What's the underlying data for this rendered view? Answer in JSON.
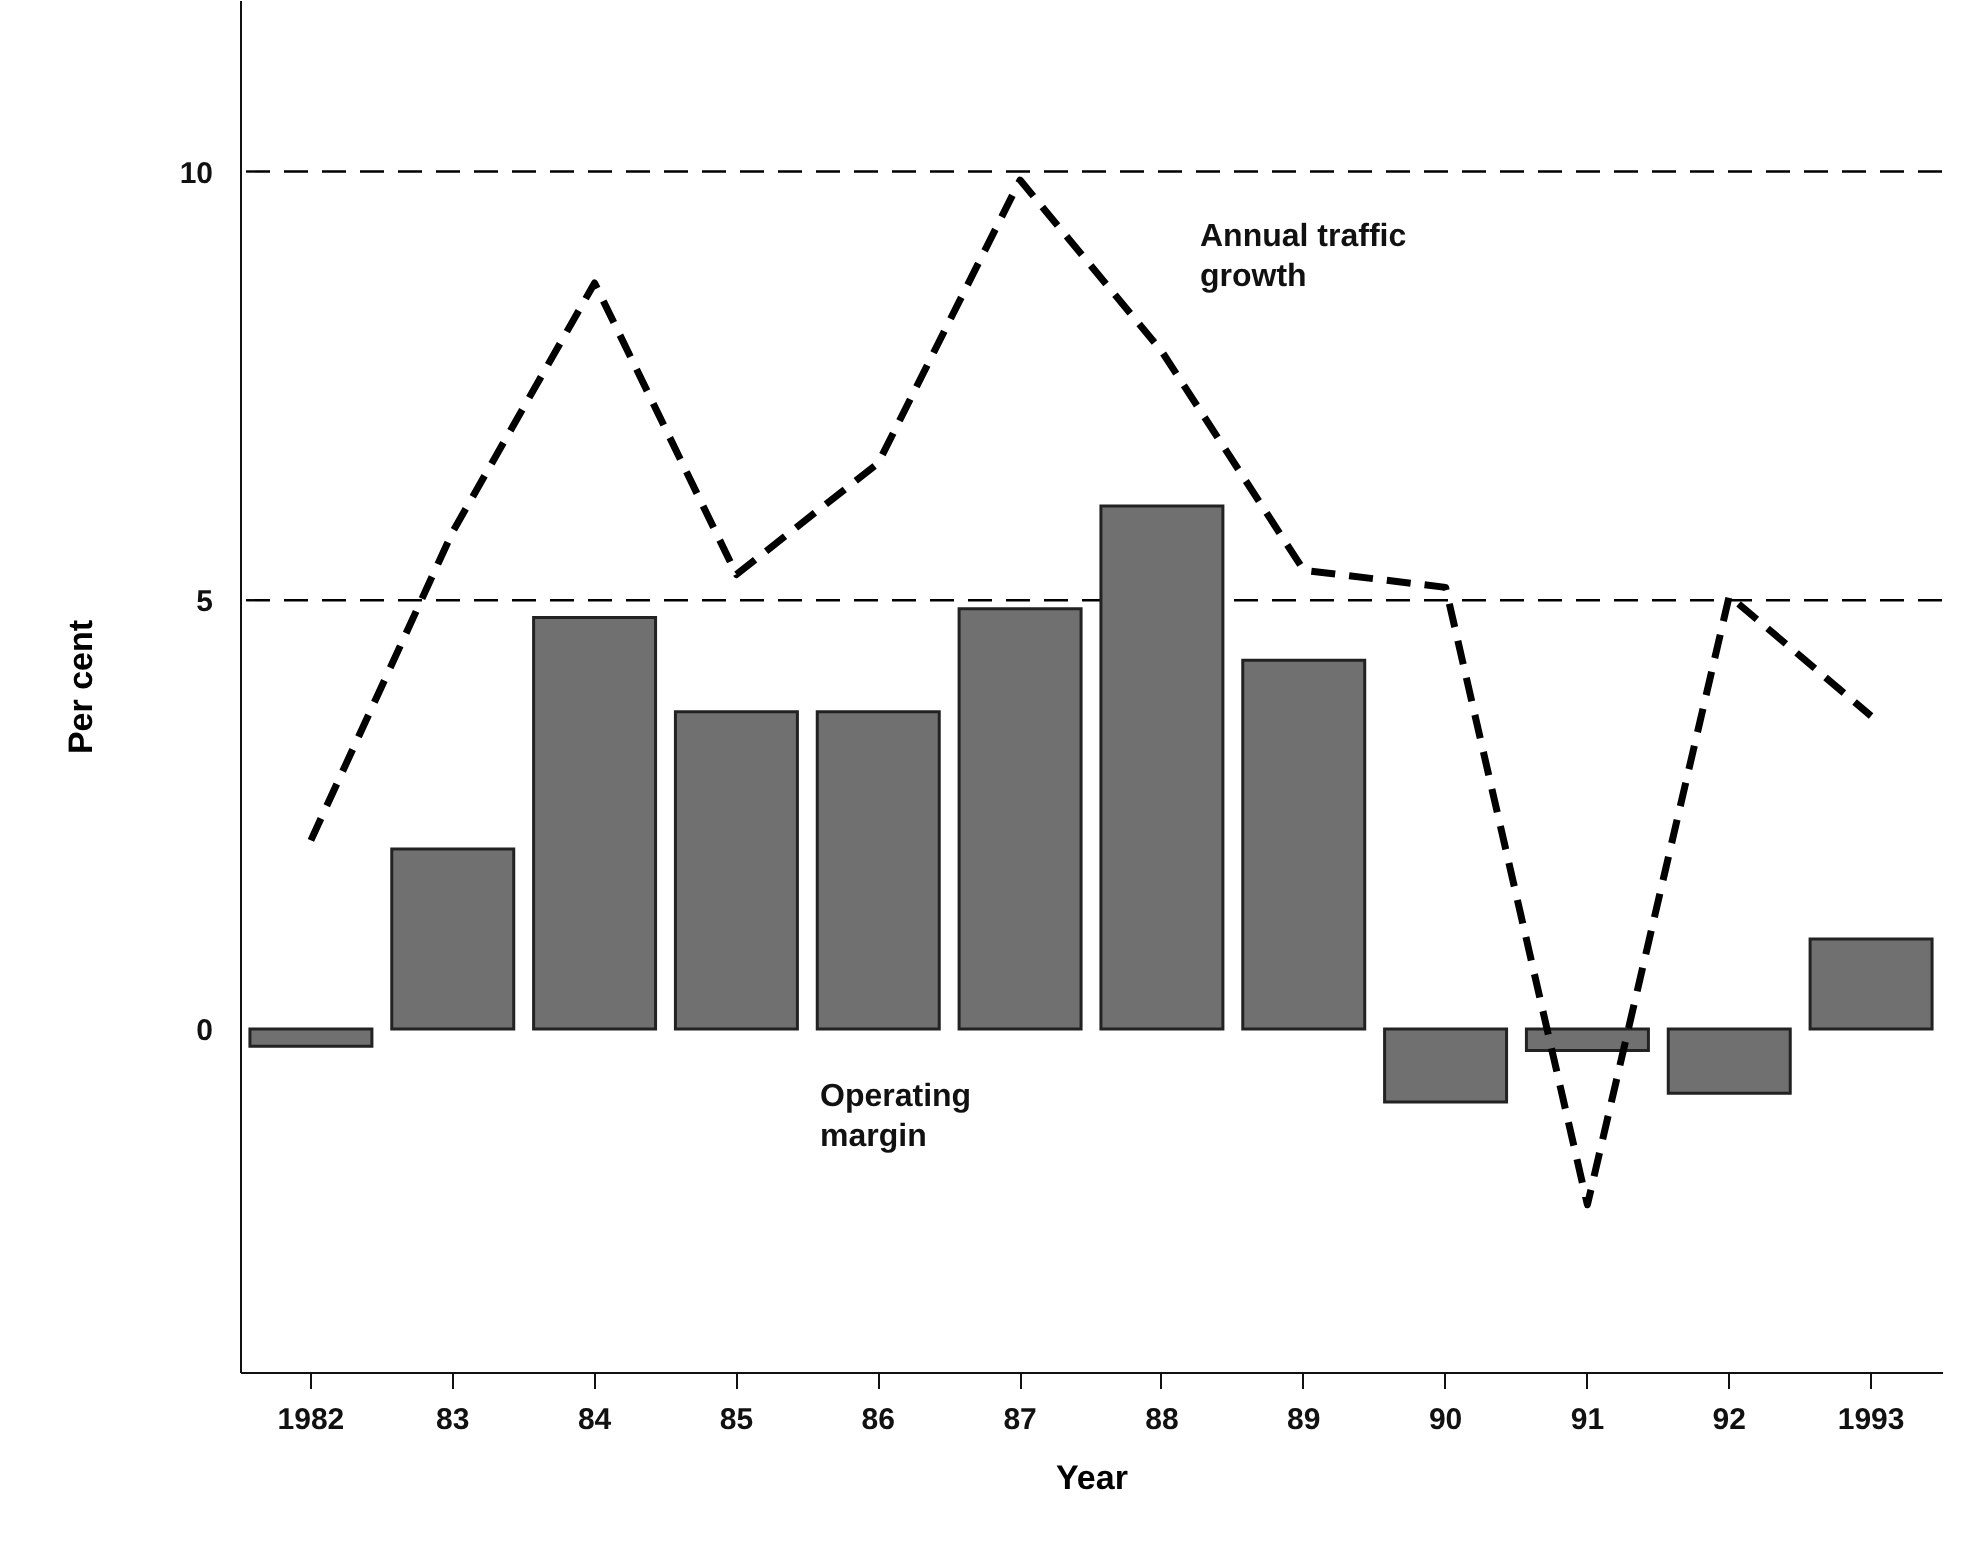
{
  "chart_data": {
    "type": "bar",
    "xlabel": "Year",
    "ylabel": "Per cent",
    "categories": [
      "1982",
      "83",
      "84",
      "85",
      "86",
      "87",
      "88",
      "89",
      "90",
      "91",
      "92",
      "1993"
    ],
    "ylim": [
      -4,
      12
    ],
    "yticks": [
      0,
      5,
      10
    ],
    "series": [
      {
        "name": "Operating margin",
        "color": "#707070",
        "values": [
          -0.2,
          2.1,
          4.8,
          3.7,
          3.7,
          4.9,
          6.1,
          4.3,
          -0.85,
          -0.25,
          -0.75,
          1.05
        ]
      },
      {
        "name": "Annual traffic growth",
        "type": "line",
        "color": "#000000",
        "line_style": "dashed",
        "marker": "none",
        "values": [
          2.2,
          5.8,
          8.7,
          5.3,
          6.6,
          9.9,
          7.9,
          5.35,
          5.15,
          -2.05,
          5.05,
          3.65
        ]
      }
    ],
    "ref_lines": [
      {
        "axis": "y",
        "value": 10,
        "color": "#000000",
        "line_style": "dashed"
      },
      {
        "axis": "y",
        "value": 5,
        "color": "#000000",
        "line_style": "dashed"
      }
    ]
  }
}
